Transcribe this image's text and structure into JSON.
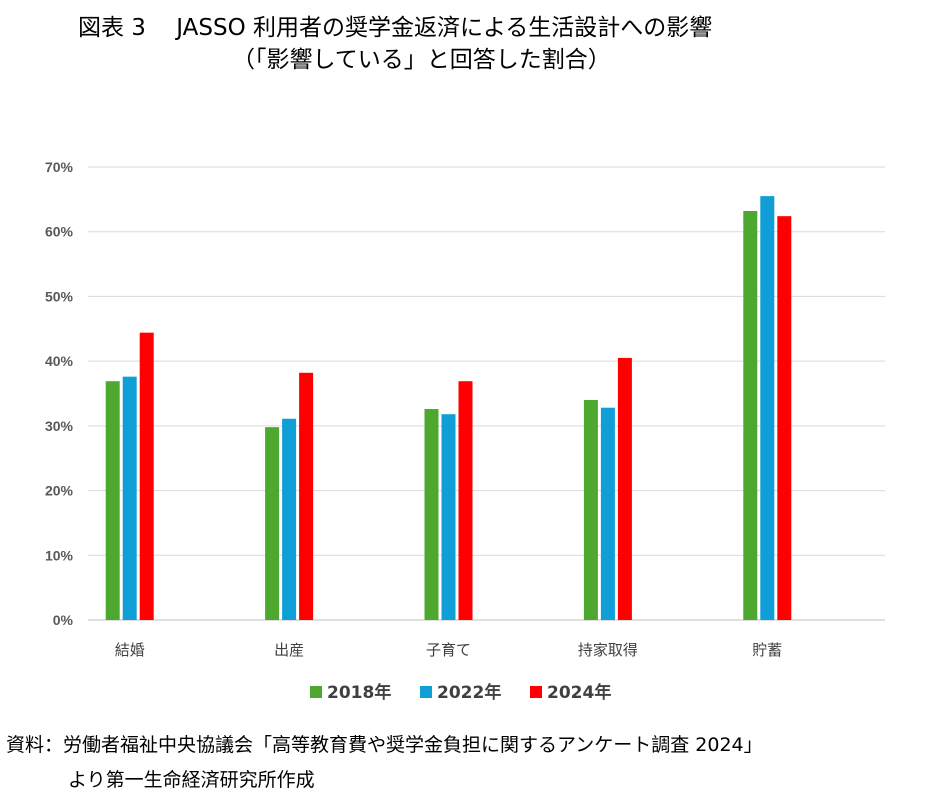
{
  "title": "図表 3　 JASSO 利用者の奨学金返済による生活設計への影響",
  "subtitle": "（「影響している」と回答した割合）",
  "source_line1": "資料：労働者福祉中央協議会「高等教育費や奨学金負担に関するアンケート調査 2024」",
  "source_line2": "より第一生命経済研究所作成",
  "chart_data": {
    "type": "bar",
    "categories": [
      "結婚",
      "出産",
      "子育て",
      "持家取得",
      "貯蓄"
    ],
    "series": [
      {
        "name": "2018年",
        "color": "#4EA72E",
        "values": [
          36.9,
          29.8,
          32.6,
          34.0,
          63.2
        ]
      },
      {
        "name": "2022年",
        "color": "#0F9ED5",
        "values": [
          37.6,
          31.1,
          31.8,
          32.8,
          65.5
        ]
      },
      {
        "name": "2024年",
        "color": "#FF0000",
        "values": [
          44.4,
          38.2,
          36.9,
          40.5,
          62.4
        ]
      }
    ],
    "ylim": [
      0,
      70
    ],
    "yticks": [
      "0%",
      "10%",
      "20%",
      "30%",
      "40%",
      "50%",
      "60%",
      "70%"
    ],
    "grid": true,
    "legend": "bottom"
  }
}
